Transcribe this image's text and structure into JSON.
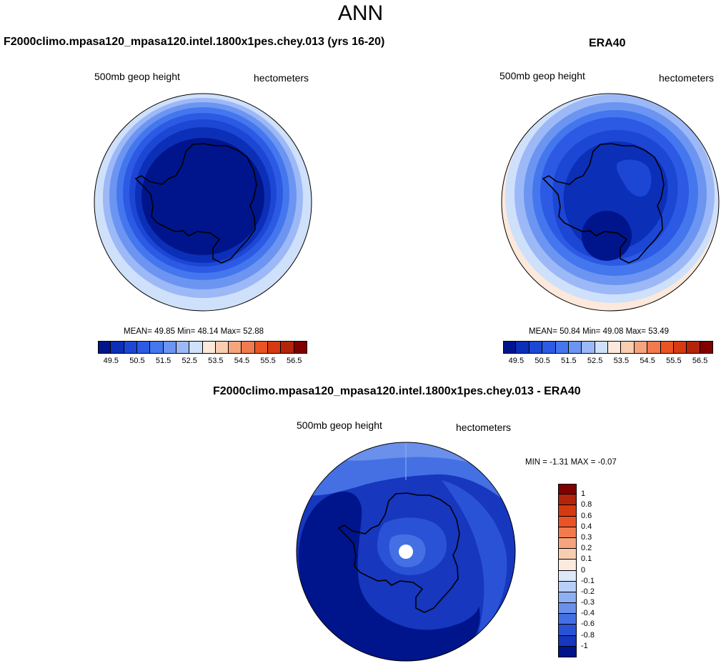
{
  "figure": {
    "title": "ANN"
  },
  "panels": {
    "model": {
      "title": "F2000climo.mpasa120_mpasa120.intel.1800x1pes.chey.013 (yrs 16-20)",
      "left_label": "500mb geop height",
      "right_label": "hectometers",
      "stats": {
        "mean_label": "MEAN=",
        "mean": "49.85",
        "min_label": "Min=",
        "min": "48.14",
        "max_label": "Max=",
        "max": "52.88"
      }
    },
    "obs": {
      "title": "ERA40",
      "left_label": "500mb geop height",
      "right_label": "hectometers",
      "stats": {
        "mean_label": "MEAN=",
        "mean": "50.84",
        "min_label": "Min=",
        "min": "49.08",
        "max_label": "Max=",
        "max": "53.49"
      }
    },
    "diff": {
      "title": "F2000climo.mpasa120_mpasa120.intel.1800x1pes.chey.013 - ERA40",
      "left_label": "500mb geop height",
      "right_label": "hectometers",
      "minmax_text": "MIN =  -1.31 MAX =  -0.07"
    }
  },
  "chart_data": [
    {
      "type": "heatmap",
      "projection": "south-polar-stereographic",
      "title": "F2000climo.mpasa120_mpasa120.intel.1800x1pes.chey.013 (yrs 16-20)",
      "variable": "500mb geop height",
      "units": "hectometers",
      "mean": 49.85,
      "min": 48.14,
      "max": 52.88,
      "contour_levels": [
        49.5,
        50,
        50.5,
        51,
        51.5,
        52,
        52.5,
        53,
        53.5,
        54,
        54.5,
        55,
        55.5,
        56,
        56.5
      ],
      "colorbar_tick_labels": [
        "49.5",
        "50.5",
        "51.5",
        "52.5",
        "53.5",
        "54.5",
        "55.5",
        "56.5"
      ],
      "colors": [
        "#00158b",
        "#0c2fb8",
        "#1c46d4",
        "#2c5ae4",
        "#4477ee",
        "#6c95f2",
        "#9cb8f6",
        "#cfe0fb",
        "#fce9dc",
        "#f8cdb0",
        "#f6a47e",
        "#f27a4e",
        "#ea5424",
        "#d53a10",
        "#b3240a",
        "#800000"
      ]
    },
    {
      "type": "heatmap",
      "projection": "south-polar-stereographic",
      "title": "ERA40",
      "variable": "500mb geop height",
      "units": "hectometers",
      "mean": 50.84,
      "min": 49.08,
      "max": 53.49,
      "contour_levels": [
        49.5,
        50,
        50.5,
        51,
        51.5,
        52,
        52.5,
        53,
        53.5,
        54,
        54.5,
        55,
        55.5,
        56,
        56.5
      ],
      "colorbar_tick_labels": [
        "49.5",
        "50.5",
        "51.5",
        "52.5",
        "53.5",
        "54.5",
        "55.5",
        "56.5"
      ],
      "colors": [
        "#00158b",
        "#0c2fb8",
        "#1c46d4",
        "#2c5ae4",
        "#4477ee",
        "#6c95f2",
        "#9cb8f6",
        "#cfe0fb",
        "#fce9dc",
        "#f8cdb0",
        "#f6a47e",
        "#f27a4e",
        "#ea5424",
        "#d53a10",
        "#b3240a",
        "#800000"
      ]
    },
    {
      "type": "heatmap",
      "projection": "south-polar-stereographic",
      "title": "F2000climo.mpasa120_mpasa120.intel.1800x1pes.chey.013 - ERA40",
      "variable": "500mb geop height",
      "units": "hectometers",
      "min": -1.31,
      "max": -0.07,
      "contour_levels": [
        -1,
        -0.8,
        -0.6,
        -0.4,
        -0.3,
        -0.2,
        -0.1,
        0,
        0.1,
        0.2,
        0.3,
        0.4,
        0.6,
        0.8,
        1
      ],
      "colorbar_tick_labels": [
        "1",
        "0.8",
        "0.6",
        "0.4",
        "0.3",
        "0.2",
        "0.1",
        "0",
        "-0.1",
        "-0.2",
        "-0.3",
        "-0.4",
        "-0.6",
        "-0.8",
        "-1"
      ],
      "colors": [
        "#800000",
        "#b3240a",
        "#d53a10",
        "#ea5424",
        "#f27a4e",
        "#f6a47e",
        "#f8cdb0",
        "#fdeade",
        "#dde8fb",
        "#b8cff8",
        "#8eb0f2",
        "#6a90ec",
        "#4470e4",
        "#2a52d6",
        "#1637be",
        "#00158b"
      ]
    }
  ]
}
